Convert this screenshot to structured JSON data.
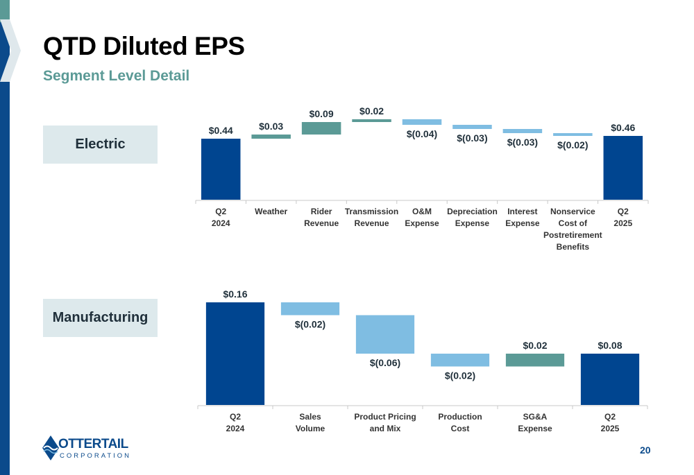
{
  "slide": {
    "title": "QTD Diluted EPS",
    "subtitle": "Segment Level Detail",
    "page_number": "20"
  },
  "logo": {
    "name": "OTTERTAIL",
    "tagline": "CORPORATION"
  },
  "colors": {
    "dark_blue": "#004590",
    "teal": "#5b9a96",
    "light_blue": "#7fbde2"
  },
  "chart_data": [
    {
      "type": "waterfall",
      "segment": "Electric",
      "categories": [
        [
          "Q2",
          "2024"
        ],
        [
          "Weather"
        ],
        [
          "Rider",
          "Revenue"
        ],
        [
          "Transmission",
          "Revenue"
        ],
        [
          "O&M",
          "Expense"
        ],
        [
          "Depreciation",
          "Expense"
        ],
        [
          "Interest",
          "Expense"
        ],
        [
          "Nonservice",
          "Cost of",
          "Postretirement",
          "Benefits"
        ],
        [
          "Q2",
          "2025"
        ]
      ],
      "values": [
        0.44,
        0.03,
        0.09,
        0.02,
        -0.04,
        -0.03,
        -0.03,
        -0.02,
        0.46
      ],
      "kinds": [
        "total",
        "increase",
        "increase",
        "increase",
        "decrease",
        "decrease",
        "decrease",
        "decrease",
        "total"
      ],
      "labels": [
        "$0.44",
        "$0.03",
        "$0.09",
        "$0.02",
        "$(0.04)",
        "$(0.03)",
        "$(0.03)",
        "$(0.02)",
        "$0.46"
      ]
    },
    {
      "type": "waterfall",
      "segment": "Manufacturing",
      "categories": [
        [
          "Q2",
          "2024"
        ],
        [
          "Sales",
          "Volume"
        ],
        [
          "Product Pricing",
          "and Mix"
        ],
        [
          "Production",
          "Cost"
        ],
        [
          "SG&A",
          "Expense"
        ],
        [
          "Q2",
          "2025"
        ]
      ],
      "values": [
        0.16,
        -0.02,
        -0.06,
        -0.02,
        0.02,
        0.08
      ],
      "kinds": [
        "total",
        "decrease",
        "decrease",
        "decrease",
        "increase",
        "total"
      ],
      "labels": [
        "$0.16",
        "$(0.02)",
        "$(0.06)",
        "$(0.02)",
        "$0.02",
        "$0.08"
      ]
    }
  ]
}
